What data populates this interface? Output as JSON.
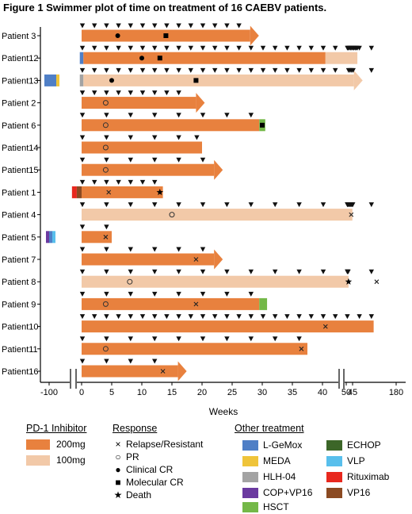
{
  "title": "Figure 1 Swimmer plot of time on treatment of 16 CAEBV patients.",
  "colors": {
    "dose200": "#e8813e",
    "dose100": "#f2c9a8",
    "L-GeMox": "#4f7fc6",
    "MEDA": "#efc43a",
    "HLH-04": "#a3a3a3",
    "COP+VP16": "#6b3aa0",
    "HSCT": "#74b848",
    "ECHOP": "#3c6628",
    "VLP": "#58bfec",
    "Rituximab": "#e8281e",
    "VP16": "#8b4a22"
  },
  "chart_data": {
    "type": "swimmer",
    "title": "Figure 1 Swimmer plot of time on treatment of 16 CAEBV patients.",
    "xlabel": "Weeks",
    "x_ticks": [
      "-100",
      "0",
      "5",
      "10",
      "15",
      "20",
      "25",
      "30",
      "35",
      "40",
      "45",
      "50",
      "180"
    ],
    "x_axis_breaks": [
      "between -100 and 0",
      "between 45 and 50"
    ],
    "patients": [
      {
        "name": "Patient 3",
        "segments": [
          {
            "start": 0,
            "end": 28,
            "dose": "200mg"
          }
        ],
        "ongoing": true,
        "pretreatment": [],
        "doses_at": [
          0,
          2,
          4,
          6,
          8,
          10,
          12,
          14,
          16,
          18,
          20,
          22,
          24,
          26
        ],
        "events": [
          {
            "type": "Clinical CR",
            "week": 6
          },
          {
            "type": "Molecular CR",
            "week": 14
          }
        ]
      },
      {
        "name": "Patient12",
        "segments": [
          {
            "start": -0.3,
            "end": 0.3,
            "dose": "L-GeMox"
          },
          {
            "start": 0.3,
            "end": 40.5,
            "dose": "200mg"
          },
          {
            "start": 40.5,
            "end": 79,
            "dose": "100mg"
          }
        ],
        "ongoing": false,
        "pretreatment": [],
        "doses_at": [
          0,
          2,
          4,
          6,
          8,
          10,
          12,
          14,
          16,
          18,
          20,
          22,
          24,
          26,
          28,
          30,
          32,
          34,
          36,
          38,
          40,
          42,
          46,
          48,
          51,
          53,
          56,
          59,
          62,
          65,
          68,
          71,
          74,
          77
        ],
        "events": [
          {
            "type": "Clinical CR",
            "week": 10
          },
          {
            "type": "Molecular CR",
            "week": 13
          }
        ]
      },
      {
        "name": "Patient13",
        "segments": [
          {
            "start": -0.3,
            "end": 0.3,
            "dose": "HLH-04"
          },
          {
            "start": 0.3,
            "end": 70,
            "dose": "100mg"
          }
        ],
        "ongoing": true,
        "pretreatment": [
          "L-GeMox",
          "MEDA"
        ],
        "doses_at": [
          0,
          2,
          4,
          6,
          8,
          10,
          12,
          14,
          16,
          18,
          20,
          22,
          24,
          26,
          28,
          30,
          32,
          34,
          36,
          38,
          40,
          42,
          48,
          54,
          58,
          62,
          66
        ],
        "events": [
          {
            "type": "Clinical CR",
            "week": 5
          },
          {
            "type": "Molecular CR",
            "week": 19
          }
        ]
      },
      {
        "name": "Patient 2",
        "segments": [
          {
            "start": 0,
            "end": 19,
            "dose": "200mg"
          }
        ],
        "ongoing": true,
        "pretreatment": [],
        "doses_at": [
          0,
          2,
          4,
          6,
          8,
          10,
          12,
          14,
          16
        ],
        "events": [
          {
            "type": "PR",
            "week": 4
          }
        ]
      },
      {
        "name": "Patient 6",
        "segments": [
          {
            "start": 0,
            "end": 29.5,
            "dose": "200mg"
          },
          {
            "start": 29.5,
            "end": 30.5,
            "dose": "HSCT"
          }
        ],
        "ongoing": false,
        "pretreatment": [],
        "doses_at": [
          0,
          4,
          8,
          12,
          16,
          20,
          24,
          28
        ],
        "events": [
          {
            "type": "PR",
            "week": 4
          },
          {
            "type": "Molecular CR",
            "week": 30
          }
        ]
      },
      {
        "name": "Patient14",
        "segments": [
          {
            "start": 0,
            "end": 20,
            "dose": "200mg"
          }
        ],
        "ongoing": false,
        "pretreatment": [],
        "doses_at": [
          0,
          4,
          8,
          12,
          16,
          19
        ],
        "events": [
          {
            "type": "PR",
            "week": 4
          }
        ]
      },
      {
        "name": "Patient15",
        "segments": [
          {
            "start": 0,
            "end": 22,
            "dose": "200mg"
          }
        ],
        "ongoing": true,
        "pretreatment": [],
        "doses_at": [
          0,
          4,
          8,
          12,
          16,
          20
        ],
        "events": [
          {
            "type": "PR",
            "week": 4
          }
        ]
      },
      {
        "name": "Patient 1",
        "segments": [
          {
            "start": -1.6,
            "end": 0,
            "dose": "Rituximab+VP16"
          },
          {
            "start": 0,
            "end": 13.5,
            "dose": "200mg"
          }
        ],
        "ongoing": false,
        "pretreatment": [],
        "doses_at": [
          0,
          2,
          4,
          6,
          8,
          10,
          12
        ],
        "events": [
          {
            "type": "Relapse/Resistant",
            "week": 4.5
          },
          {
            "type": "Death",
            "week": 13
          }
        ]
      },
      {
        "name": "Patient 4",
        "segments": [
          {
            "start": 0,
            "end": 66,
            "dose": "100mg"
          }
        ],
        "ongoing": false,
        "pretreatment": [],
        "doses_at": [
          0,
          4,
          8,
          12,
          16,
          20,
          24,
          28,
          32,
          36,
          40,
          44,
          48,
          51,
          53,
          55,
          57,
          59,
          61,
          63,
          65
        ],
        "events": [
          {
            "type": "PR",
            "week": 15
          },
          {
            "type": "Relapse/Resistant",
            "week": 63
          }
        ]
      },
      {
        "name": "Patient 5",
        "segments": [
          {
            "start": 0,
            "end": 5,
            "dose": "200mg"
          }
        ],
        "ongoing": false,
        "pretreatment": [
          "COP+VP16",
          "L-GeMox",
          "VLP"
        ],
        "doses_at": [
          0,
          4
        ],
        "events": [
          {
            "type": "Relapse/Resistant",
            "week": 4
          }
        ]
      },
      {
        "name": "Patient 7",
        "segments": [
          {
            "start": 0,
            "end": 22,
            "dose": "200mg"
          }
        ],
        "ongoing": true,
        "pretreatment": [],
        "doses_at": [
          0,
          4,
          8,
          12,
          16,
          20
        ],
        "events": [
          {
            "type": "Relapse/Resistant",
            "week": 19
          }
        ]
      },
      {
        "name": "Patient 8",
        "segments": [
          {
            "start": 0,
            "end": 56,
            "dose": "100mg"
          }
        ],
        "ongoing": false,
        "pretreatment": [],
        "doses_at": [
          0,
          4,
          8,
          12,
          16,
          20,
          24,
          28,
          32,
          36,
          40,
          44,
          48,
          51,
          53
        ],
        "events": [
          {
            "type": "PR",
            "week": 8
          },
          {
            "type": "Relapse/Resistant",
            "week": 49
          },
          {
            "type": "Death",
            "week": 56
          }
        ]
      },
      {
        "name": "Patient 9",
        "segments": [
          {
            "start": 0,
            "end": 29.5,
            "dose": "200mg"
          },
          {
            "start": 29.5,
            "end": 30.8,
            "dose": "HSCT"
          }
        ],
        "ongoing": false,
        "pretreatment": [],
        "doses_at": [
          0,
          4,
          8,
          12,
          16,
          20,
          24,
          28
        ],
        "events": [
          {
            "type": "PR",
            "week": 4
          },
          {
            "type": "Relapse/Resistant",
            "week": 19
          }
        ]
      },
      {
        "name": "Patient10",
        "segments": [
          {
            "start": 0,
            "end": 48.5,
            "dose": "200mg"
          }
        ],
        "ongoing": false,
        "pretreatment": [],
        "doses_at": [
          0,
          2,
          4,
          6,
          8,
          10,
          12,
          14,
          16,
          18,
          20,
          22,
          24,
          26,
          28,
          30,
          32,
          34,
          36,
          38,
          40,
          42,
          44,
          46,
          48
        ],
        "events": [
          {
            "type": "Relapse/Resistant",
            "week": 40.5
          }
        ]
      },
      {
        "name": "Patient11",
        "segments": [
          {
            "start": 0,
            "end": 37.5,
            "dose": "200mg"
          }
        ],
        "ongoing": false,
        "pretreatment": [],
        "doses_at": [
          0,
          4,
          8,
          12,
          16,
          20,
          24,
          28,
          32,
          36
        ],
        "events": [
          {
            "type": "PR",
            "week": 4
          },
          {
            "type": "Relapse/Resistant",
            "week": 36.5
          }
        ]
      },
      {
        "name": "Patient16",
        "segments": [
          {
            "start": 0,
            "end": 16,
            "dose": "200mg"
          }
        ],
        "ongoing": true,
        "pretreatment": [],
        "doses_at": [
          0,
          4,
          8,
          12
        ],
        "events": [
          {
            "type": "Relapse/Resistant",
            "week": 13.5
          }
        ]
      }
    ]
  },
  "legend": {
    "pd1": {
      "title": "PD-1 Inhibitor",
      "items": [
        {
          "label": "200mg",
          "color": "#e8813e"
        },
        {
          "label": "100mg",
          "color": "#f2c9a8"
        }
      ]
    },
    "response": {
      "title": "Response",
      "items": [
        {
          "symbol": "×",
          "label": "Relapse/Resistant"
        },
        {
          "symbol": "○",
          "label": "PR"
        },
        {
          "symbol": "●",
          "label": "Clinical CR"
        },
        {
          "symbol": "■",
          "label": "Molecular CR"
        },
        {
          "symbol": "★",
          "label": "Death"
        }
      ]
    },
    "other": {
      "title": "Other treatment",
      "col1": [
        {
          "label": "L-GeMox",
          "color": "#4f7fc6"
        },
        {
          "label": "MEDA",
          "color": "#efc43a"
        },
        {
          "label": "HLH-04",
          "color": "#a3a3a3"
        },
        {
          "label": "COP+VP16",
          "color": "#6b3aa0"
        },
        {
          "label": "HSCT",
          "color": "#74b848"
        }
      ],
      "col2": [
        {
          "label": "ECHOP",
          "color": "#3c6628"
        },
        {
          "label": "VLP",
          "color": "#58bfec"
        },
        {
          "label": "Rituximab",
          "color": "#e8281e"
        },
        {
          "label": "VP16",
          "color": "#8b4a22"
        }
      ]
    }
  }
}
